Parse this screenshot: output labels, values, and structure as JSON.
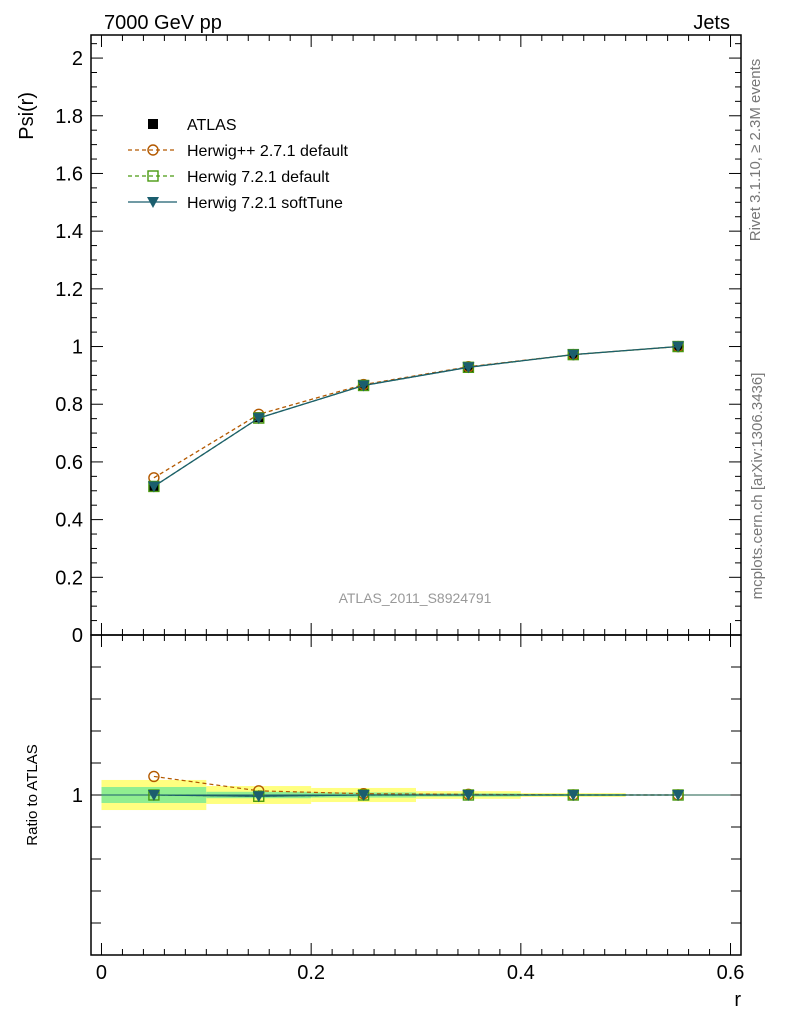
{
  "header": {
    "left": "7000 GeV pp",
    "right": "Jets"
  },
  "side_labels": {
    "rivet": "Rivet 3.1.10, ≥ 2.3M events",
    "mcplots": "mcplots.cern.ch [arXiv:1306.3436]"
  },
  "watermark": "ATLAS_2011_S8924791",
  "colors": {
    "atlas": "#000000",
    "herwig_pp": "#b35900",
    "herwig721": "#4a9a10",
    "softtune": "#1b5e6e",
    "band_inner": "#90ee90",
    "band_outer": "#ffff80"
  },
  "chart_data": [
    {
      "type": "scatter",
      "ylabel": "Psi(r)",
      "xlim": [
        -0.01,
        0.61
      ],
      "ylim": [
        0,
        2.08
      ],
      "yticks": [
        "0",
        "0.2",
        "0.4",
        "0.6",
        "0.8",
        "1",
        "1.2",
        "1.4",
        "1.6",
        "1.8",
        "2"
      ],
      "legend_position": "top-left",
      "x": [
        0.05,
        0.15,
        0.25,
        0.35,
        0.45,
        0.55
      ],
      "series": [
        {
          "name": "ATLAS",
          "marker": "filled-square",
          "values": [
            0.515,
            0.755,
            0.865,
            0.928,
            0.972,
            1.0
          ]
        },
        {
          "name": "Herwig++ 2.7.1 default",
          "marker": "open-circle",
          "line": "dashed",
          "values": [
            0.545,
            0.765,
            0.868,
            0.93,
            0.972,
            1.0
          ]
        },
        {
          "name": "Herwig 7.2.1 default",
          "marker": "open-square",
          "line": "dashed",
          "values": [
            0.515,
            0.752,
            0.865,
            0.928,
            0.972,
            1.0
          ]
        },
        {
          "name": "Herwig 7.2.1 softTune",
          "marker": "filled-triangle-down",
          "line": "solid",
          "values": [
            0.515,
            0.752,
            0.865,
            0.928,
            0.972,
            1.0
          ]
        }
      ]
    },
    {
      "type": "scatter",
      "ylabel": "Ratio to ATLAS",
      "xlabel": "r",
      "xlim": [
        -0.01,
        0.61
      ],
      "ylim": [
        0.5,
        1.5
      ],
      "yticks": [
        "1"
      ],
      "xticks": [
        "0",
        "0.2",
        "0.4",
        "0.6"
      ],
      "x": [
        0.05,
        0.15,
        0.25,
        0.35,
        0.45,
        0.55
      ],
      "bands": {
        "bin_edges": [
          0.0,
          0.1,
          0.2,
          0.3,
          0.4,
          0.5,
          0.6
        ],
        "inner_halfwidth": [
          0.025,
          0.01,
          0.008,
          0.005,
          0.003,
          0.001
        ],
        "outer_halfwidth": [
          0.047,
          0.028,
          0.022,
          0.012,
          0.006,
          0.002
        ]
      },
      "series": [
        {
          "name": "Herwig++ 2.7.1 default",
          "values": [
            1.058,
            1.013,
            1.004,
            1.002,
            1.0,
            1.0
          ]
        },
        {
          "name": "Herwig 7.2.1 default",
          "values": [
            1.0,
            0.996,
            1.0,
            1.0,
            1.0,
            1.0
          ]
        },
        {
          "name": "Herwig 7.2.1 softTune",
          "values": [
            1.0,
            0.996,
            1.0,
            1.0,
            1.0,
            1.0
          ]
        }
      ]
    }
  ]
}
